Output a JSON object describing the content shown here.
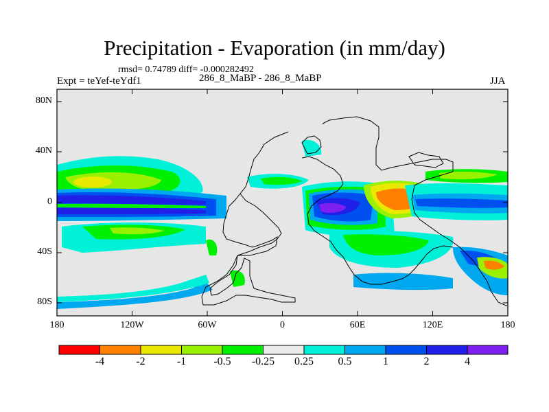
{
  "header": {
    "title": "Precipitation - Evaporation (in mm/day)",
    "stats": "rmsd= 0.74789 diff= -0.000282492",
    "experiment": "Expt = teYef-teYdf1",
    "cases": "286_8_MaBP - 286_8_MaBP",
    "season": "JJA"
  },
  "axes": {
    "lat_labels": [
      "80N",
      "40N",
      "0",
      "40S",
      "80S"
    ],
    "lon_labels": [
      "180",
      "120W",
      "60W",
      "0",
      "60E",
      "120E",
      "180"
    ]
  },
  "colorbar": {
    "labels": [
      "-4",
      "-2",
      "-1",
      "-0.5",
      "-0.25",
      "0.25",
      "0.5",
      "1",
      "2",
      "4"
    ],
    "colors": [
      "#ff0000",
      "#ff8000",
      "#e8e800",
      "#99f000",
      "#00f000",
      "#eaeaea",
      "#00f0d8",
      "#00a8f0",
      "#0050f0",
      "#2020e8",
      "#8020f0"
    ]
  },
  "map": {
    "background_color": "#e6e6e6",
    "features": [
      {
        "name": "north-pacific-band",
        "level": "0.25 to 0.5"
      },
      {
        "name": "north-pacific-core",
        "level": "-1 to -0.5"
      },
      {
        "name": "equatorial-pacific-band",
        "level": "1 to 2"
      },
      {
        "name": "equatorial-pacific-core",
        "level": "2 to 4"
      },
      {
        "name": "south-pacific-band",
        "level": "0.25 to 0.5"
      },
      {
        "name": "southern-ocean-band",
        "level": "1 to 2"
      },
      {
        "name": "africa-indian-blue",
        "level": "2 to 4"
      },
      {
        "name": "africa-indian-core",
        "level": ">4"
      },
      {
        "name": "indian-ocean-orange",
        "level": "-4 to -2"
      },
      {
        "name": "maritime-continent-blue",
        "level": "1 to 2"
      },
      {
        "name": "south-indian-band",
        "level": "0.25 to 0.5"
      },
      {
        "name": "australia-region-blue",
        "level": "2 to 4"
      },
      {
        "name": "tasman-orange",
        "level": "-2 to -1"
      }
    ]
  }
}
